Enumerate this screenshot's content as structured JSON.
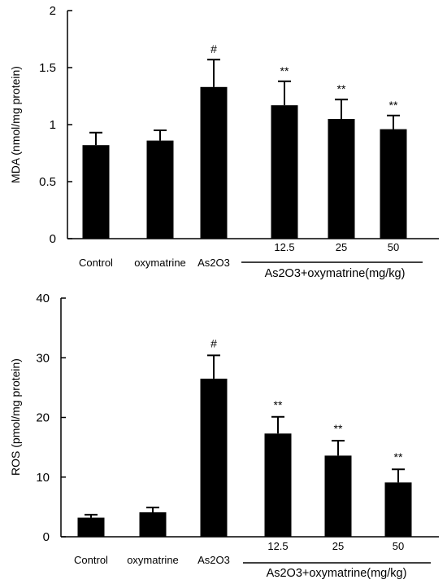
{
  "chart_data": [
    {
      "type": "bar",
      "ylabel": "MDA (nmol/mg protein)",
      "ylim": [
        0,
        2
      ],
      "yticks": [
        "0",
        "0.5",
        "1",
        "1.5",
        "2"
      ],
      "categories": [
        "Control",
        "oxymatrine",
        "As2O3",
        "12.5",
        "25",
        "50"
      ],
      "group_label": "As2O3+oxymatrine(mg/kg)",
      "values": [
        0.82,
        0.86,
        1.33,
        1.17,
        1.05,
        0.96
      ],
      "errors": [
        0.11,
        0.09,
        0.24,
        0.21,
        0.17,
        0.12
      ],
      "annotations": [
        "",
        "",
        "#",
        "**",
        "**",
        "**"
      ],
      "bar_color": "#000000"
    },
    {
      "type": "bar",
      "ylabel": "ROS (pmol/mg protein)",
      "ylim": [
        0,
        40
      ],
      "yticks": [
        "0",
        "10",
        "20",
        "30",
        "40"
      ],
      "categories": [
        "Control",
        "oxymatrine",
        "As2O3",
        "12.5",
        "25",
        "50"
      ],
      "group_label": "As2O3+oxymatrine(mg/kg)",
      "values": [
        3.2,
        4.1,
        26.5,
        17.3,
        13.6,
        9.1
      ],
      "errors": [
        0.5,
        0.8,
        3.9,
        2.8,
        2.5,
        2.2
      ],
      "annotations": [
        "",
        "",
        "#",
        "**",
        "**",
        "**"
      ],
      "bar_color": "#000000"
    }
  ]
}
